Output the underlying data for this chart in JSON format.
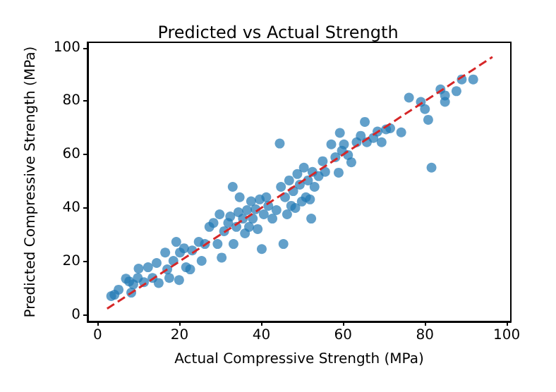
{
  "chart_data": {
    "type": "scatter",
    "title": "Predicted vs Actual Strength",
    "xlabel": "Actual Compressive Strength (MPa)",
    "ylabel": "Predicted Compressive Strength (MPa)",
    "xlim": [
      -2.5,
      101
    ],
    "ylim": [
      -2.5,
      102
    ],
    "xticks": [
      0,
      20,
      40,
      60,
      80,
      100
    ],
    "yticks": [
      0,
      20,
      40,
      60,
      80,
      100
    ],
    "grid": false,
    "marker": "circle",
    "series": [
      {
        "color": "#1f77b4",
        "x": [
          3.3,
          5.1,
          4.1,
          6.9,
          7.7,
          8.7,
          8.2,
          10,
          9.8,
          11.3,
          12.3,
          13.4,
          14.4,
          14.9,
          16.5,
          17,
          17.5,
          18.5,
          19.2,
          19.9,
          20.1,
          21.1,
          21.6,
          22.6,
          23.1,
          24.7,
          25.4,
          26.2,
          27.3,
          28.3,
          29.3,
          29.8,
          30.3,
          30.9,
          31.9,
          32.4,
          33,
          33.2,
          33.9,
          34.4,
          34.7,
          35.5,
          36,
          36.5,
          37,
          37.5,
          37.9,
          38.6,
          39.1,
          39.6,
          40.1,
          40.6,
          41.2,
          41.7,
          42.7,
          43.7,
          44.5,
          44.8,
          45.4,
          45.8,
          46.3,
          46.8,
          47.3,
          47.8,
          48.3,
          48.8,
          49.4,
          49.9,
          50.4,
          50.9,
          51.4,
          51.9,
          52.2,
          52.5,
          53,
          54,
          55,
          55.6,
          57.1,
          58.1,
          58.9,
          59.2,
          59.7,
          60.2,
          61.2,
          62,
          63.3,
          64.3,
          65.3,
          65.8,
          67.4,
          68.4,
          69.4,
          70.5,
          71.5,
          74.2,
          76.1,
          79,
          80,
          80.8,
          81.6,
          83.8,
          84.9,
          84.9,
          87.7,
          89,
          91.8
        ],
        "values": [
          7,
          9.4,
          7.5,
          13.5,
          12.5,
          11.4,
          8.3,
          17.3,
          13.8,
          12.2,
          17.8,
          13.8,
          19.4,
          11.9,
          23.3,
          17,
          13.8,
          20.2,
          27.3,
          13,
          23.3,
          24.9,
          17.8,
          17,
          24.1,
          27.3,
          20.2,
          26.5,
          32.9,
          34.4,
          26.5,
          37.6,
          21.4,
          31.3,
          34.4,
          36.8,
          47.9,
          26.5,
          32.9,
          38.4,
          44,
          36,
          30.5,
          39.2,
          32.9,
          42.5,
          36,
          39.5,
          32.1,
          43.2,
          24.6,
          37.6,
          44,
          40.8,
          36,
          39.2,
          64.1,
          47.9,
          26.5,
          44,
          37.6,
          50.3,
          40.8,
          46.3,
          40,
          52.7,
          48.7,
          42.4,
          55.1,
          44,
          50.3,
          43.2,
          36,
          53.5,
          47.9,
          51.9,
          57.5,
          53.5,
          63.8,
          59,
          53.2,
          68.1,
          61.4,
          63.8,
          59.8,
          57.1,
          64.6,
          67,
          72.2,
          64.6,
          66.2,
          68.6,
          64.6,
          69.4,
          69.8,
          68.3,
          81.3,
          79.7,
          77,
          73,
          55.1,
          84.4,
          82.1,
          79.7,
          83.7,
          88.1,
          88.1
        ]
      },
      {
        "type": "line",
        "color": "#d62728",
        "marker": "none",
        "line_style": "dashed",
        "x": [
          2.3,
          96.5
        ],
        "values": [
          2.3,
          96.5
        ]
      }
    ]
  }
}
